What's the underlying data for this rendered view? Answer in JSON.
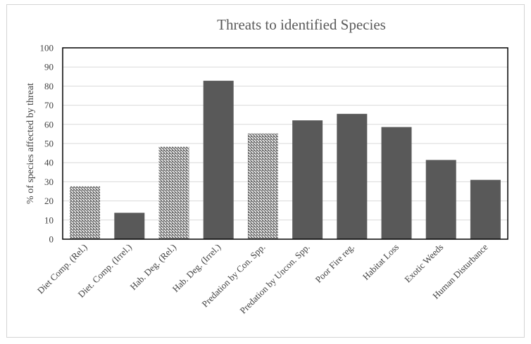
{
  "chart_data": {
    "type": "bar",
    "title": "Threats to identified Species",
    "xlabel": "",
    "ylabel": "% of species affected by threat",
    "ylim": [
      0,
      100
    ],
    "yticks": [
      0,
      10,
      20,
      30,
      40,
      50,
      60,
      70,
      80,
      90,
      100
    ],
    "grid": true,
    "legend": "none",
    "categories": [
      "Diet Comp. (Rel.)",
      "Diet. Comp. (Irrel.)",
      "Hab. Deg. (Rel.)",
      "Hab. Deg. (Irrel.)",
      "Predation by Con. Spp.",
      "Predation by Uncon. Spp.",
      "Poor Fire reg.",
      "Habitat Loss",
      "Exotic Weeds",
      "Human Disturbance"
    ],
    "values": [
      27.6,
      13.8,
      48.3,
      82.8,
      55.2,
      62.1,
      65.5,
      58.6,
      41.4,
      31.0
    ],
    "fill_styles": [
      "hatched",
      "solid",
      "hatched",
      "solid",
      "hatched",
      "solid",
      "solid",
      "solid",
      "solid",
      "solid"
    ],
    "colors": {
      "bar": "#595959",
      "hatch_line": "#595959",
      "hatch_bg": "#ffffff",
      "grid": "#d9d9d9",
      "axis": "#000000"
    }
  }
}
